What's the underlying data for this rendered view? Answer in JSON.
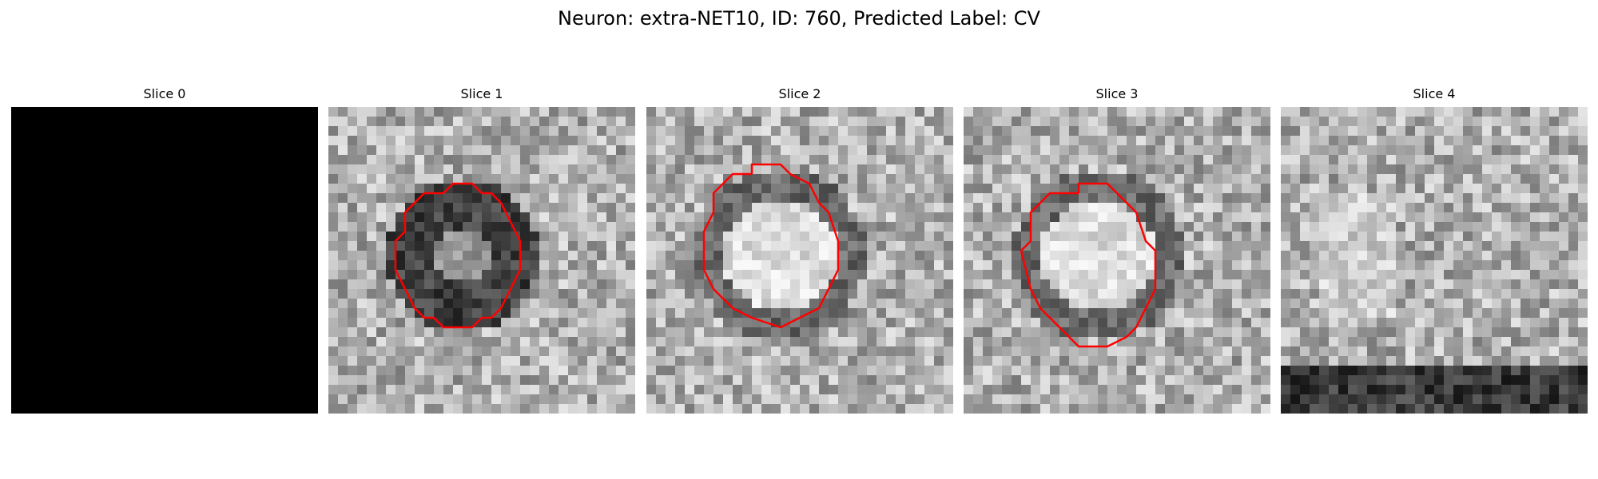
{
  "figure": {
    "title": "Neuron: extra-NET10, ID: 760, Predicted Label: CV"
  },
  "panels": [
    {
      "title": "Slice 0",
      "blank": true,
      "seed": 0,
      "has_contour": false,
      "center": "none"
    },
    {
      "title": "Slice 1",
      "blank": false,
      "seed": 11,
      "has_contour": true,
      "center": "dark ring"
    },
    {
      "title": "Slice 2",
      "blank": false,
      "seed": 23,
      "has_contour": true,
      "center": "bright"
    },
    {
      "title": "Slice 3",
      "blank": false,
      "seed": 37,
      "has_contour": true,
      "center": "bright"
    },
    {
      "title": "Slice 4",
      "blank": false,
      "seed": 53,
      "has_contour": false,
      "center": "none"
    }
  ],
  "colors": {
    "contour": "#ff0000",
    "background": "#ffffff",
    "blank_slice": "#000000"
  }
}
